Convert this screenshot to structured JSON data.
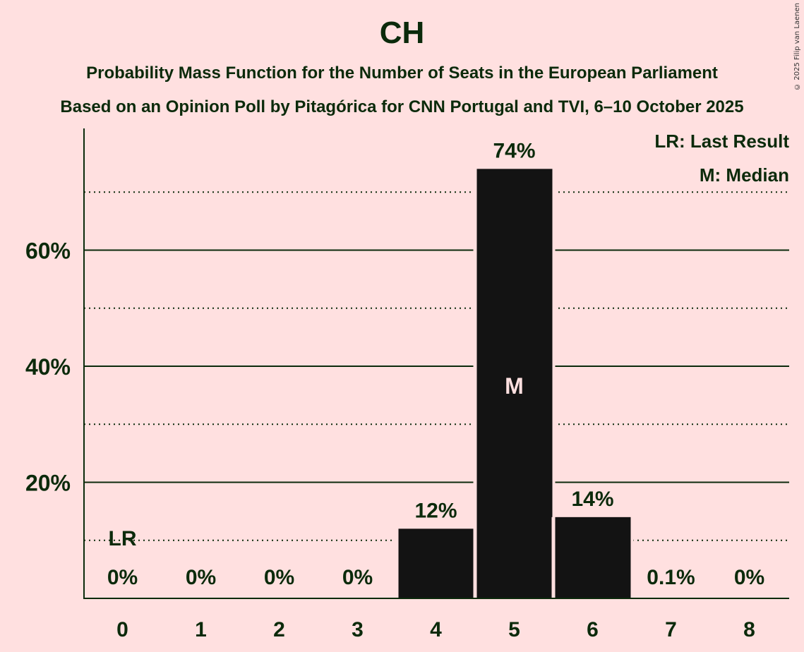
{
  "title": "CH",
  "subtitle1": "Probability Mass Function for the Number of Seats in the European Parliament",
  "subtitle2": "Based on an Opinion Poll by Pitagórica for CNN Portugal and TVI, 6–10 October 2025",
  "copyright": "© 2025 Filip van Laenen",
  "legend": {
    "lr": "LR: Last Result",
    "m": "M: Median"
  },
  "markers": {
    "last_result_label": "LR",
    "last_result_seat": 0,
    "median_label": "M",
    "median_seat": 5
  },
  "colors": {
    "background": "#FFE0E0",
    "bar": "#131313",
    "text": "#0B2A0B"
  },
  "chart_data": {
    "type": "bar",
    "title": "CH",
    "subtitle": "Probability Mass Function for the Number of Seats in the European Parliament",
    "xlabel": "",
    "ylabel": "",
    "categories": [
      "0",
      "1",
      "2",
      "3",
      "4",
      "5",
      "6",
      "7",
      "8"
    ],
    "values": [
      0,
      0,
      0,
      0,
      12,
      74,
      14,
      0.1,
      0
    ],
    "value_labels": [
      "0%",
      "0%",
      "0%",
      "0%",
      "12%",
      "74%",
      "14%",
      "0.1%",
      "0%"
    ],
    "yticks": [
      "20%",
      "40%",
      "60%"
    ],
    "ylim": [
      0,
      80
    ],
    "grid": {
      "solid": [
        20,
        40,
        60
      ],
      "dotted": [
        10,
        30,
        50,
        70
      ]
    },
    "legend_position": "top-right",
    "annotations": [
      "LR at 0",
      "M at 5"
    ]
  }
}
